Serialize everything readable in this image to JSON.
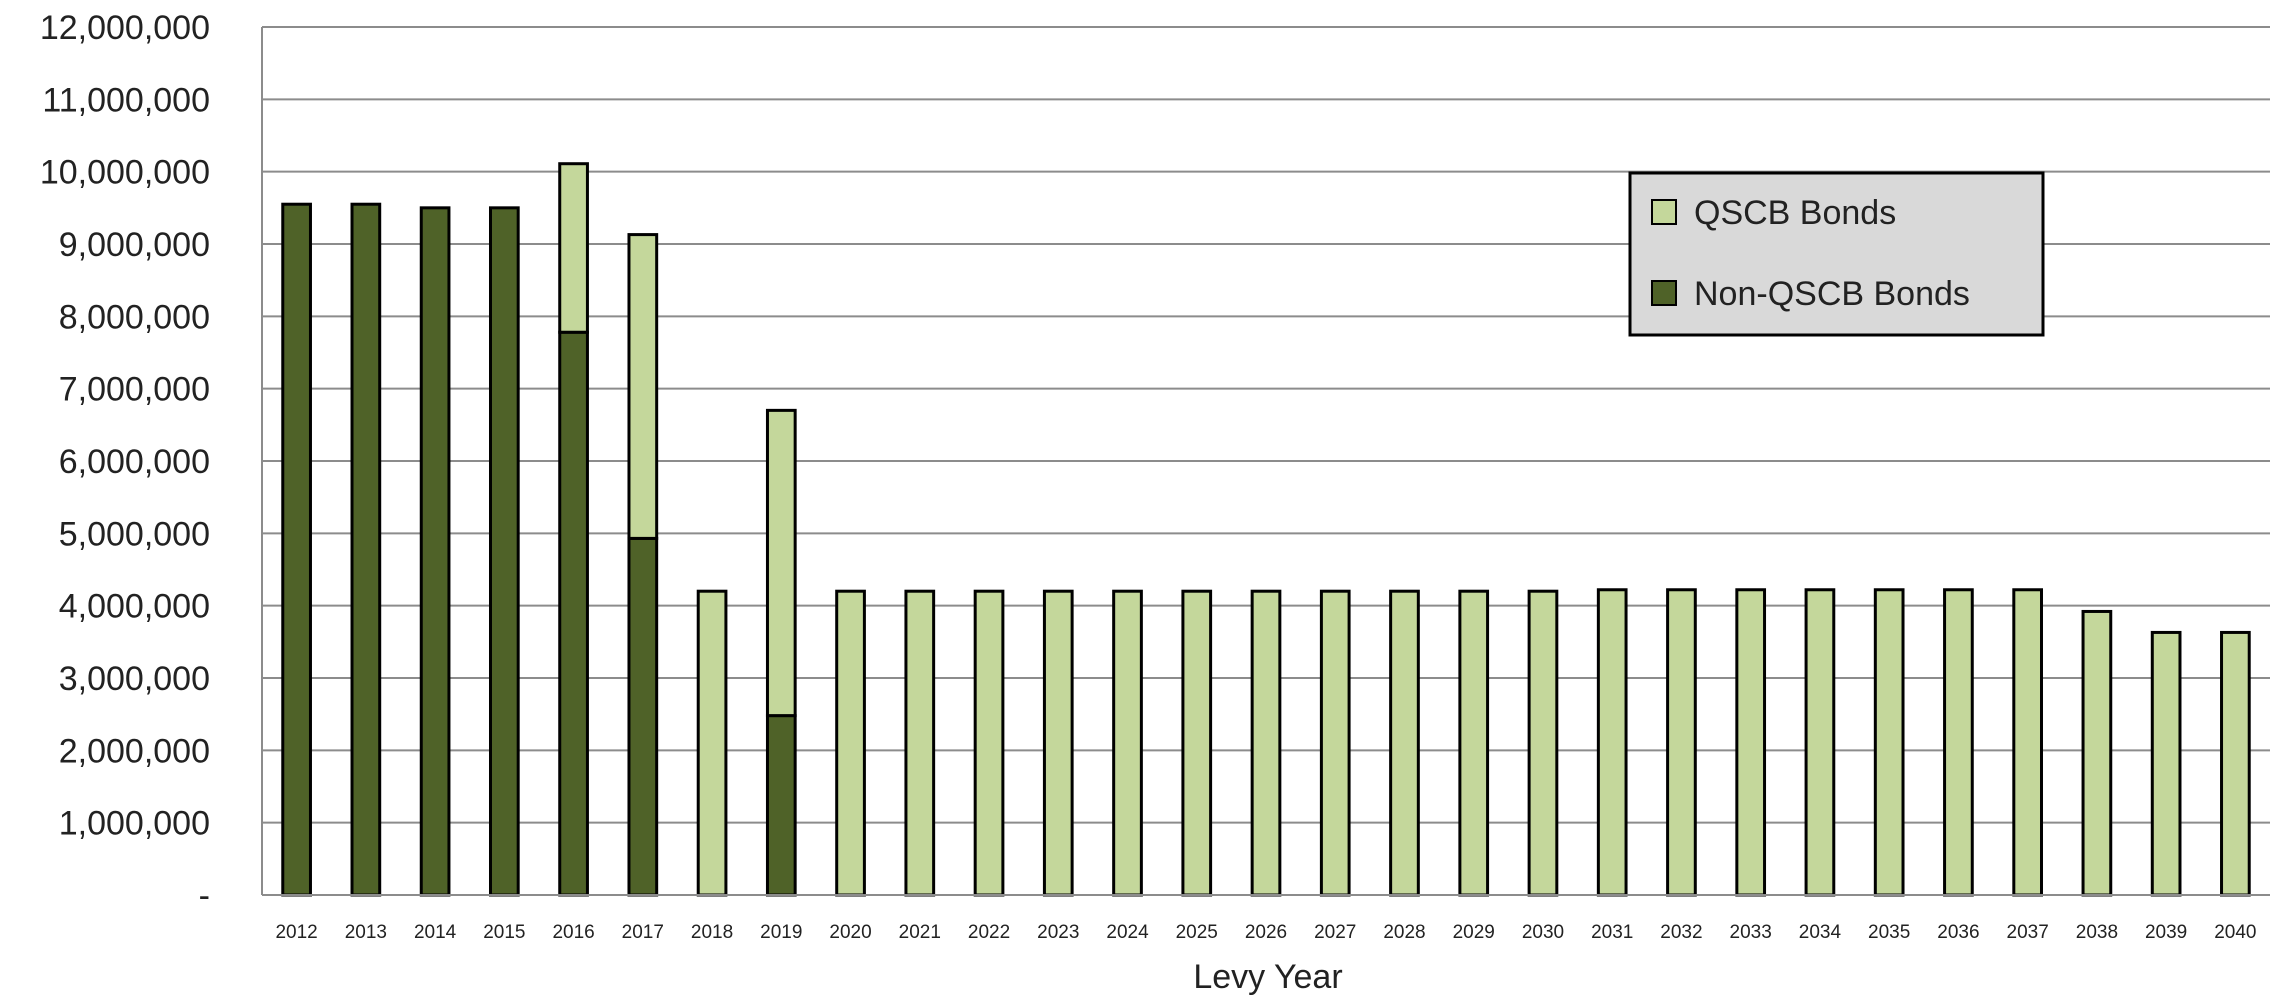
{
  "chart_data": {
    "type": "bar",
    "stacked": true,
    "title": "",
    "xlabel": "Levy Year",
    "ylabel": "",
    "ylim": [
      0,
      12000000
    ],
    "y_ticks": [
      0,
      1000000,
      2000000,
      3000000,
      4000000,
      5000000,
      6000000,
      7000000,
      8000000,
      9000000,
      10000000,
      11000000,
      12000000
    ],
    "y_tick_labels": [
      "-",
      "1,000,000",
      "2,000,000",
      "3,000,000",
      "4,000,000",
      "5,000,000",
      "6,000,000",
      "7,000,000",
      "8,000,000",
      "9,000,000",
      "10,000,000",
      "11,000,000",
      "12,000,000"
    ],
    "grid": true,
    "legend_position": "top-right",
    "categories": [
      "2012",
      "2013",
      "2014",
      "2015",
      "2016",
      "2017",
      "2018",
      "2019",
      "2020",
      "2021",
      "2022",
      "2023",
      "2024",
      "2025",
      "2026",
      "2027",
      "2028",
      "2029",
      "2030",
      "2031",
      "2032",
      "2033",
      "2034",
      "2035",
      "2036",
      "2037",
      "2038",
      "2039",
      "2040"
    ],
    "series": [
      {
        "name": "Non-QSCB Bonds",
        "color": "#4f6228",
        "values": [
          9550000,
          9550000,
          9500000,
          9500000,
          7780000,
          4930000,
          0,
          2480000,
          0,
          0,
          0,
          0,
          0,
          0,
          0,
          0,
          0,
          0,
          0,
          0,
          0,
          0,
          0,
          0,
          0,
          0,
          0,
          0,
          0
        ]
      },
      {
        "name": "QSCB Bonds",
        "color": "#c4d79b",
        "values": [
          0,
          0,
          0,
          0,
          2330000,
          4200000,
          4200000,
          4220000,
          4200000,
          4200000,
          4200000,
          4200000,
          4200000,
          4200000,
          4200000,
          4200000,
          4200000,
          4200000,
          4200000,
          4220000,
          4220000,
          4220000,
          4220000,
          4220000,
          4220000,
          4220000,
          3920000,
          3630000,
          3630000
        ]
      }
    ],
    "legend": [
      {
        "label": "QSCB Bonds",
        "color": "#c4d79b"
      },
      {
        "label": "Non-QSCB Bonds",
        "color": "#4f6228"
      }
    ]
  }
}
